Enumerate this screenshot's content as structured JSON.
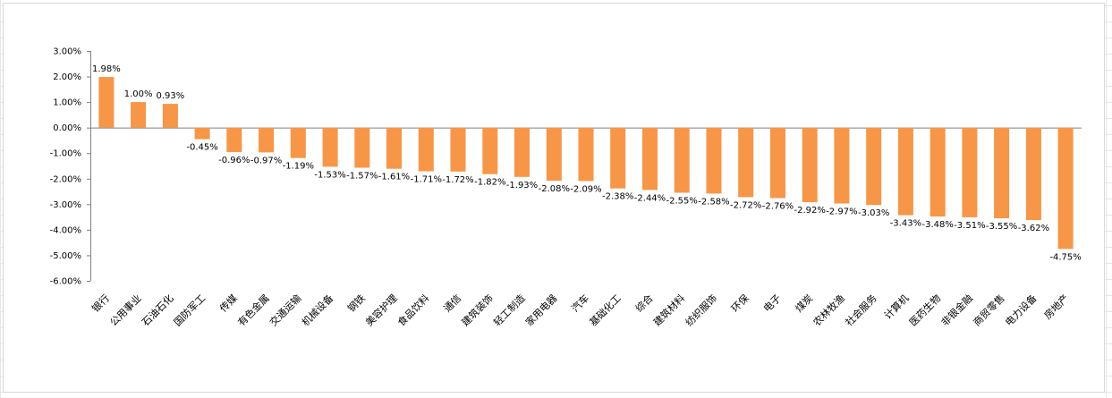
{
  "chart_data": {
    "type": "bar",
    "title": "",
    "xlabel": "",
    "ylabel": "",
    "ylim": [
      -6,
      3
    ],
    "y_ticks": [
      "3.00%",
      "2.00%",
      "1.00%",
      "0.00%",
      "-1.00%",
      "-2.00%",
      "-3.00%",
      "-4.00%",
      "-5.00%",
      "-6.00%"
    ],
    "bar_color": "#F79646",
    "grid": false,
    "legend": "none",
    "categories": [
      "银行",
      "公用事业",
      "石油石化",
      "国防军工",
      "传媒",
      "有色金属",
      "交通运输",
      "机械设备",
      "钢铁",
      "美容护理",
      "食品饮料",
      "通信",
      "建筑装饰",
      "轻工制造",
      "家用电器",
      "汽车",
      "基础化工",
      "综合",
      "建筑材料",
      "纺织服饰",
      "环保",
      "电子",
      "煤炭",
      "农林牧渔",
      "社会服务",
      "计算机",
      "医药生物",
      "非银金融",
      "商贸零售",
      "电力设备",
      "房地产"
    ],
    "values": [
      1.98,
      1.0,
      0.93,
      -0.45,
      -0.96,
      -0.97,
      -1.19,
      -1.53,
      -1.57,
      -1.61,
      -1.71,
      -1.72,
      -1.82,
      -1.93,
      -2.08,
      -2.09,
      -2.38,
      -2.44,
      -2.55,
      -2.58,
      -2.72,
      -2.76,
      -2.92,
      -2.97,
      -3.03,
      -3.43,
      -3.48,
      -3.51,
      -3.55,
      -3.62,
      -4.75
    ],
    "data_labels": [
      "1.98%",
      "1.00%",
      "0.93%",
      "-0.45%",
      "-0.96%",
      "-0.97%",
      "-1.19%",
      "-1.53%",
      "-1.57%",
      "-1.61%",
      "-1.71%",
      "-1.72%",
      "-1.82%",
      "-1.93%",
      "-2.08%",
      "-2.09%",
      "-2.38%",
      "-2.44%",
      "-2.55%",
      "-2.58%",
      "-2.72%",
      "-2.76%",
      "-2.92%",
      "-2.97%",
      "-3.03%",
      "-3.43%",
      "-3.48%",
      "-3.51%",
      "-3.55%",
      "-3.62%",
      "-4.75%"
    ]
  }
}
